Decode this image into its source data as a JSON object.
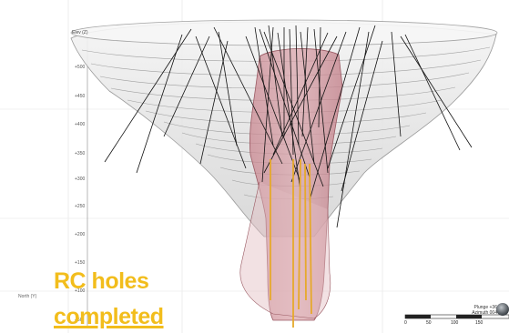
{
  "axis": {
    "title": "Elev (Z)",
    "elevation_ticks": [
      "+500",
      "+450",
      "+400",
      "+350",
      "+300",
      "+250",
      "+200",
      "+150",
      "+100",
      "+50"
    ],
    "north_label": "North (Y)"
  },
  "overlay": {
    "line1": "RC holes",
    "line2": "completed",
    "color": "#f2bd1c"
  },
  "orientation": {
    "plunge": "Plunge +36",
    "azimuth": "Azimuth 004"
  },
  "scale_bar": {
    "labels": [
      "0",
      "50",
      "100",
      "150"
    ]
  },
  "colors": {
    "pit_shell": "#d8d8d8",
    "orebody": "#c98790",
    "drillhole": "#111111",
    "rc_hole": "#e6a92b"
  }
}
